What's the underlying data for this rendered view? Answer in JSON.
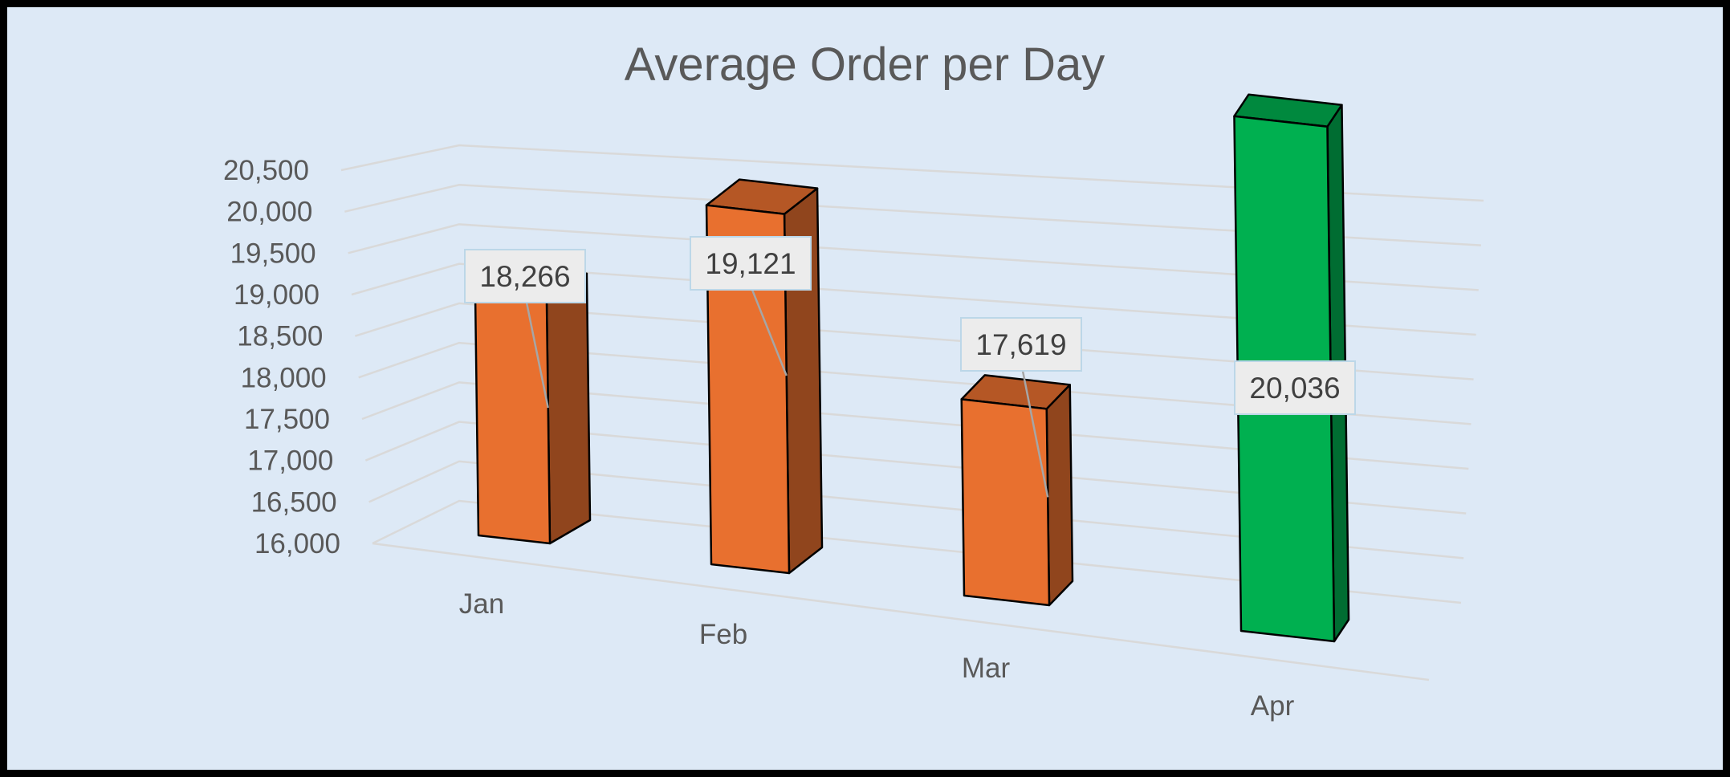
{
  "chart_data": {
    "type": "bar",
    "title": "Average Order per Day",
    "xlabel": "",
    "ylabel": "",
    "categories": [
      "Jan",
      "Feb",
      "Mar",
      "Apr"
    ],
    "values": [
      18266,
      19121,
      17619,
      20036
    ],
    "data_labels": [
      "18,266",
      "19,121",
      "17,619",
      "20,036"
    ],
    "ylim": [
      16000,
      20500
    ],
    "yticks": [
      16000,
      16500,
      17000,
      17500,
      18000,
      18500,
      19000,
      19500,
      20000,
      20500
    ],
    "ytick_labels": [
      "16,000",
      "16,500",
      "17,000",
      "17,500",
      "18,000",
      "18,500",
      "19,000",
      "19,500",
      "20,000",
      "20,500"
    ],
    "grid": true,
    "legend": "none",
    "style": "3d-column",
    "colors": {
      "bar": "#e8702f",
      "bar_highlight": "#00b050",
      "background": "#dde9f6",
      "gridline": "#d9d9d9",
      "text": "#595959"
    },
    "highlight_category": "Apr"
  }
}
